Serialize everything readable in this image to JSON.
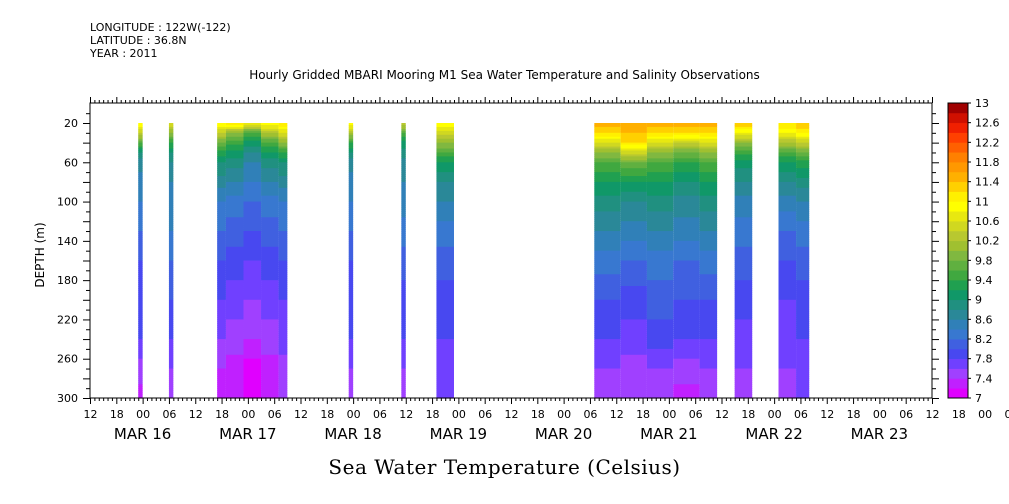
{
  "header": {
    "longitude": "LONGITUDE : 122W(-122)",
    "latitude": "LATITUDE : 36.8N",
    "year": "YEAR : 2011"
  },
  "chart_data": {
    "type": "heatmap",
    "title": "Hourly Gridded MBARI Mooring M1 Sea Water Temperature and Salinity Observations",
    "xlabel": "Sea Water Temperature (Celsius)",
    "ylabel": "DEPTH (m)",
    "x_range": [
      "MAR 15 12:00",
      "MAR 23 12:00"
    ],
    "ylim": [
      300,
      10
    ],
    "y_ticks": [
      20,
      60,
      100,
      140,
      180,
      220,
      260,
      300
    ],
    "x_hour_ticks": [
      "12",
      "18",
      "00",
      "06",
      "12",
      "18",
      "00",
      "06",
      "12",
      "18",
      "00",
      "06",
      "12",
      "18",
      "00",
      "06",
      "12",
      "18",
      "00",
      "06",
      "12",
      "18",
      "00",
      "06",
      "12",
      "18",
      "00",
      "06",
      "12",
      "18",
      "00",
      "06",
      "12",
      "18",
      "00",
      "06",
      "12",
      "18",
      "00",
      "06",
      "12",
      "18",
      "00",
      "06",
      "12",
      "18",
      "00",
      "06",
      "12"
    ],
    "x_day_labels": [
      {
        "label": "MAR 16",
        "time": "MAR 16 00:00"
      },
      {
        "label": "MAR 17",
        "time": "MAR 17 00:00"
      },
      {
        "label": "MAR 18",
        "time": "MAR 18 00:00"
      },
      {
        "label": "MAR 19",
        "time": "MAR 19 00:00"
      },
      {
        "label": "MAR 20",
        "time": "MAR 20 00:00"
      },
      {
        "label": "MAR 21",
        "time": "MAR 21 00:00"
      },
      {
        "label": "MAR 22",
        "time": "MAR 22 00:00"
      },
      {
        "label": "MAR 23",
        "time": "MAR 23 00:00"
      }
    ],
    "depths": [
      20,
      30,
      40,
      50,
      60,
      80,
      100,
      130,
      160,
      200,
      240,
      270,
      300
    ],
    "data_segments": [
      {
        "start": "MAR 15 23:00",
        "end": "MAR 15 24:00",
        "temps": [
          11.0,
          10.4,
          9.6,
          9.0,
          8.7,
          8.5,
          8.4,
          8.2,
          8.0,
          7.9,
          7.8,
          7.5,
          7.3
        ]
      },
      {
        "start": "MAR 16 06:00",
        "end": "MAR 16 07:00",
        "temps": [
          10.6,
          10.0,
          9.4,
          9.0,
          8.8,
          8.6,
          8.5,
          8.4,
          8.2,
          8.0,
          7.8,
          7.6,
          7.5
        ]
      },
      {
        "start": "MAR 16 17:00",
        "end": "MAR 16 19:00",
        "temps": [
          11.0,
          10.4,
          9.8,
          9.3,
          9.0,
          8.7,
          8.4,
          8.2,
          8.0,
          7.8,
          7.6,
          7.4,
          7.3
        ]
      },
      {
        "start": "MAR 16 19:00",
        "end": "MAR 16 23:00",
        "temps": [
          11.2,
          10.0,
          9.5,
          9.1,
          8.9,
          8.6,
          8.3,
          8.1,
          7.9,
          7.7,
          7.5,
          7.3,
          7.2
        ]
      },
      {
        "start": "MAR 16 23:00",
        "end": "MAR 17 03:00",
        "temps": [
          10.8,
          9.6,
          9.1,
          8.8,
          8.6,
          8.4,
          8.2,
          8.0,
          7.8,
          7.6,
          7.4,
          7.1,
          7.0
        ]
      },
      {
        "start": "MAR 17 03:00",
        "end": "MAR 17 07:00",
        "temps": [
          11.0,
          10.2,
          9.6,
          9.2,
          8.9,
          8.6,
          8.3,
          8.1,
          7.9,
          7.7,
          7.5,
          7.3,
          7.2
        ]
      },
      {
        "start": "MAR 17 07:00",
        "end": "MAR 17 09:00",
        "temps": [
          11.2,
          10.6,
          10.0,
          9.4,
          9.0,
          8.7,
          8.4,
          8.2,
          8.0,
          7.8,
          7.7,
          7.5,
          7.4
        ]
      },
      {
        "start": "MAR 17 23:00",
        "end": "MAR 18 00:00",
        "temps": [
          11.0,
          10.2,
          9.4,
          9.0,
          8.7,
          8.5,
          8.4,
          8.2,
          8.0,
          7.9,
          7.8,
          7.6,
          7.4
        ]
      },
      {
        "start": "MAR 18 11:00",
        "end": "MAR 18 12:00",
        "temps": [
          10.4,
          9.6,
          9.1,
          8.9,
          8.7,
          8.6,
          8.5,
          8.3,
          8.1,
          7.9,
          7.8,
          7.6,
          7.4
        ]
      },
      {
        "start": "MAR 18 19:00",
        "end": "MAR 18 23:00",
        "temps": [
          11.0,
          10.5,
          10.0,
          9.6,
          9.2,
          8.8,
          8.6,
          8.3,
          8.1,
          7.9,
          7.8,
          7.7,
          7.6
        ]
      },
      {
        "start": "MAR 20 07:00",
        "end": "MAR 20 13:00",
        "temps": [
          11.6,
          11.2,
          10.6,
          10.0,
          9.6,
          9.2,
          8.9,
          8.6,
          8.3,
          8.0,
          7.8,
          7.6,
          7.5
        ]
      },
      {
        "start": "MAR 20 13:00",
        "end": "MAR 20 19:00",
        "temps": [
          11.6,
          11.4,
          11.2,
          10.5,
          9.8,
          9.2,
          8.8,
          8.5,
          8.2,
          7.9,
          7.7,
          7.5,
          7.4
        ]
      },
      {
        "start": "MAR 20 19:00",
        "end": "MAR 21 01:00",
        "temps": [
          11.6,
          11.2,
          10.6,
          10.0,
          9.6,
          9.2,
          8.9,
          8.6,
          8.3,
          8.1,
          7.9,
          7.6,
          7.5
        ]
      },
      {
        "start": "MAR 21 01:00",
        "end": "MAR 21 07:00",
        "temps": [
          11.6,
          11.2,
          10.4,
          9.8,
          9.4,
          9.0,
          8.7,
          8.5,
          8.2,
          8.0,
          7.8,
          7.5,
          7.3
        ]
      },
      {
        "start": "MAR 21 07:00",
        "end": "MAR 21 11:00",
        "temps": [
          11.6,
          11.2,
          10.6,
          10.0,
          9.6,
          9.2,
          8.9,
          8.6,
          8.3,
          8.0,
          7.8,
          7.6,
          7.5
        ]
      },
      {
        "start": "MAR 21 15:00",
        "end": "MAR 21 19:00",
        "temps": [
          11.4,
          10.8,
          10.0,
          9.5,
          9.1,
          8.8,
          8.5,
          8.3,
          8.1,
          7.9,
          7.7,
          7.6,
          7.5
        ]
      },
      {
        "start": "MAR 22 01:00",
        "end": "MAR 22 05:00",
        "temps": [
          11.2,
          10.8,
          10.2,
          9.6,
          9.2,
          8.8,
          8.5,
          8.2,
          8.0,
          7.8,
          7.7,
          7.6,
          7.5
        ]
      },
      {
        "start": "MAR 22 05:00",
        "end": "MAR 22 08:00",
        "temps": [
          11.4,
          11.0,
          10.4,
          9.8,
          9.3,
          8.9,
          8.6,
          8.3,
          8.1,
          7.9,
          7.8,
          7.7,
          7.6
        ]
      }
    ],
    "colorbar": {
      "levels": [
        7.0,
        7.2,
        7.4,
        7.6,
        7.8,
        8.0,
        8.2,
        8.4,
        8.6,
        8.8,
        9.0,
        9.2,
        9.4,
        9.6,
        9.8,
        10.0,
        10.2,
        10.4,
        10.6,
        10.8,
        11.0,
        11.2,
        11.4,
        11.6,
        11.8,
        12.0,
        12.2,
        12.4,
        12.6,
        12.8,
        13.0
      ],
      "labels": [
        "7",
        "7.4",
        "7.8",
        "8.2",
        "8.6",
        "9",
        "9.4",
        "9.8",
        "10.2",
        "10.6",
        "11",
        "11.4",
        "11.8",
        "12.2",
        "12.6",
        "13"
      ],
      "colors": [
        "#e000ff",
        "#c020ff",
        "#a040ff",
        "#7040ff",
        "#4848f0",
        "#4060e0",
        "#3878d0",
        "#3080b8",
        "#2a8898",
        "#209080",
        "#109868",
        "#20a050",
        "#40a840",
        "#60b040",
        "#80b840",
        "#a0c030",
        "#b8c830",
        "#d0d820",
        "#e8e810",
        "#ffff00",
        "#fff000",
        "#ffd000",
        "#ffb000",
        "#ff9800",
        "#ff8000",
        "#ff6000",
        "#ff4000",
        "#f02000",
        "#d01000",
        "#a00000"
      ]
    }
  }
}
